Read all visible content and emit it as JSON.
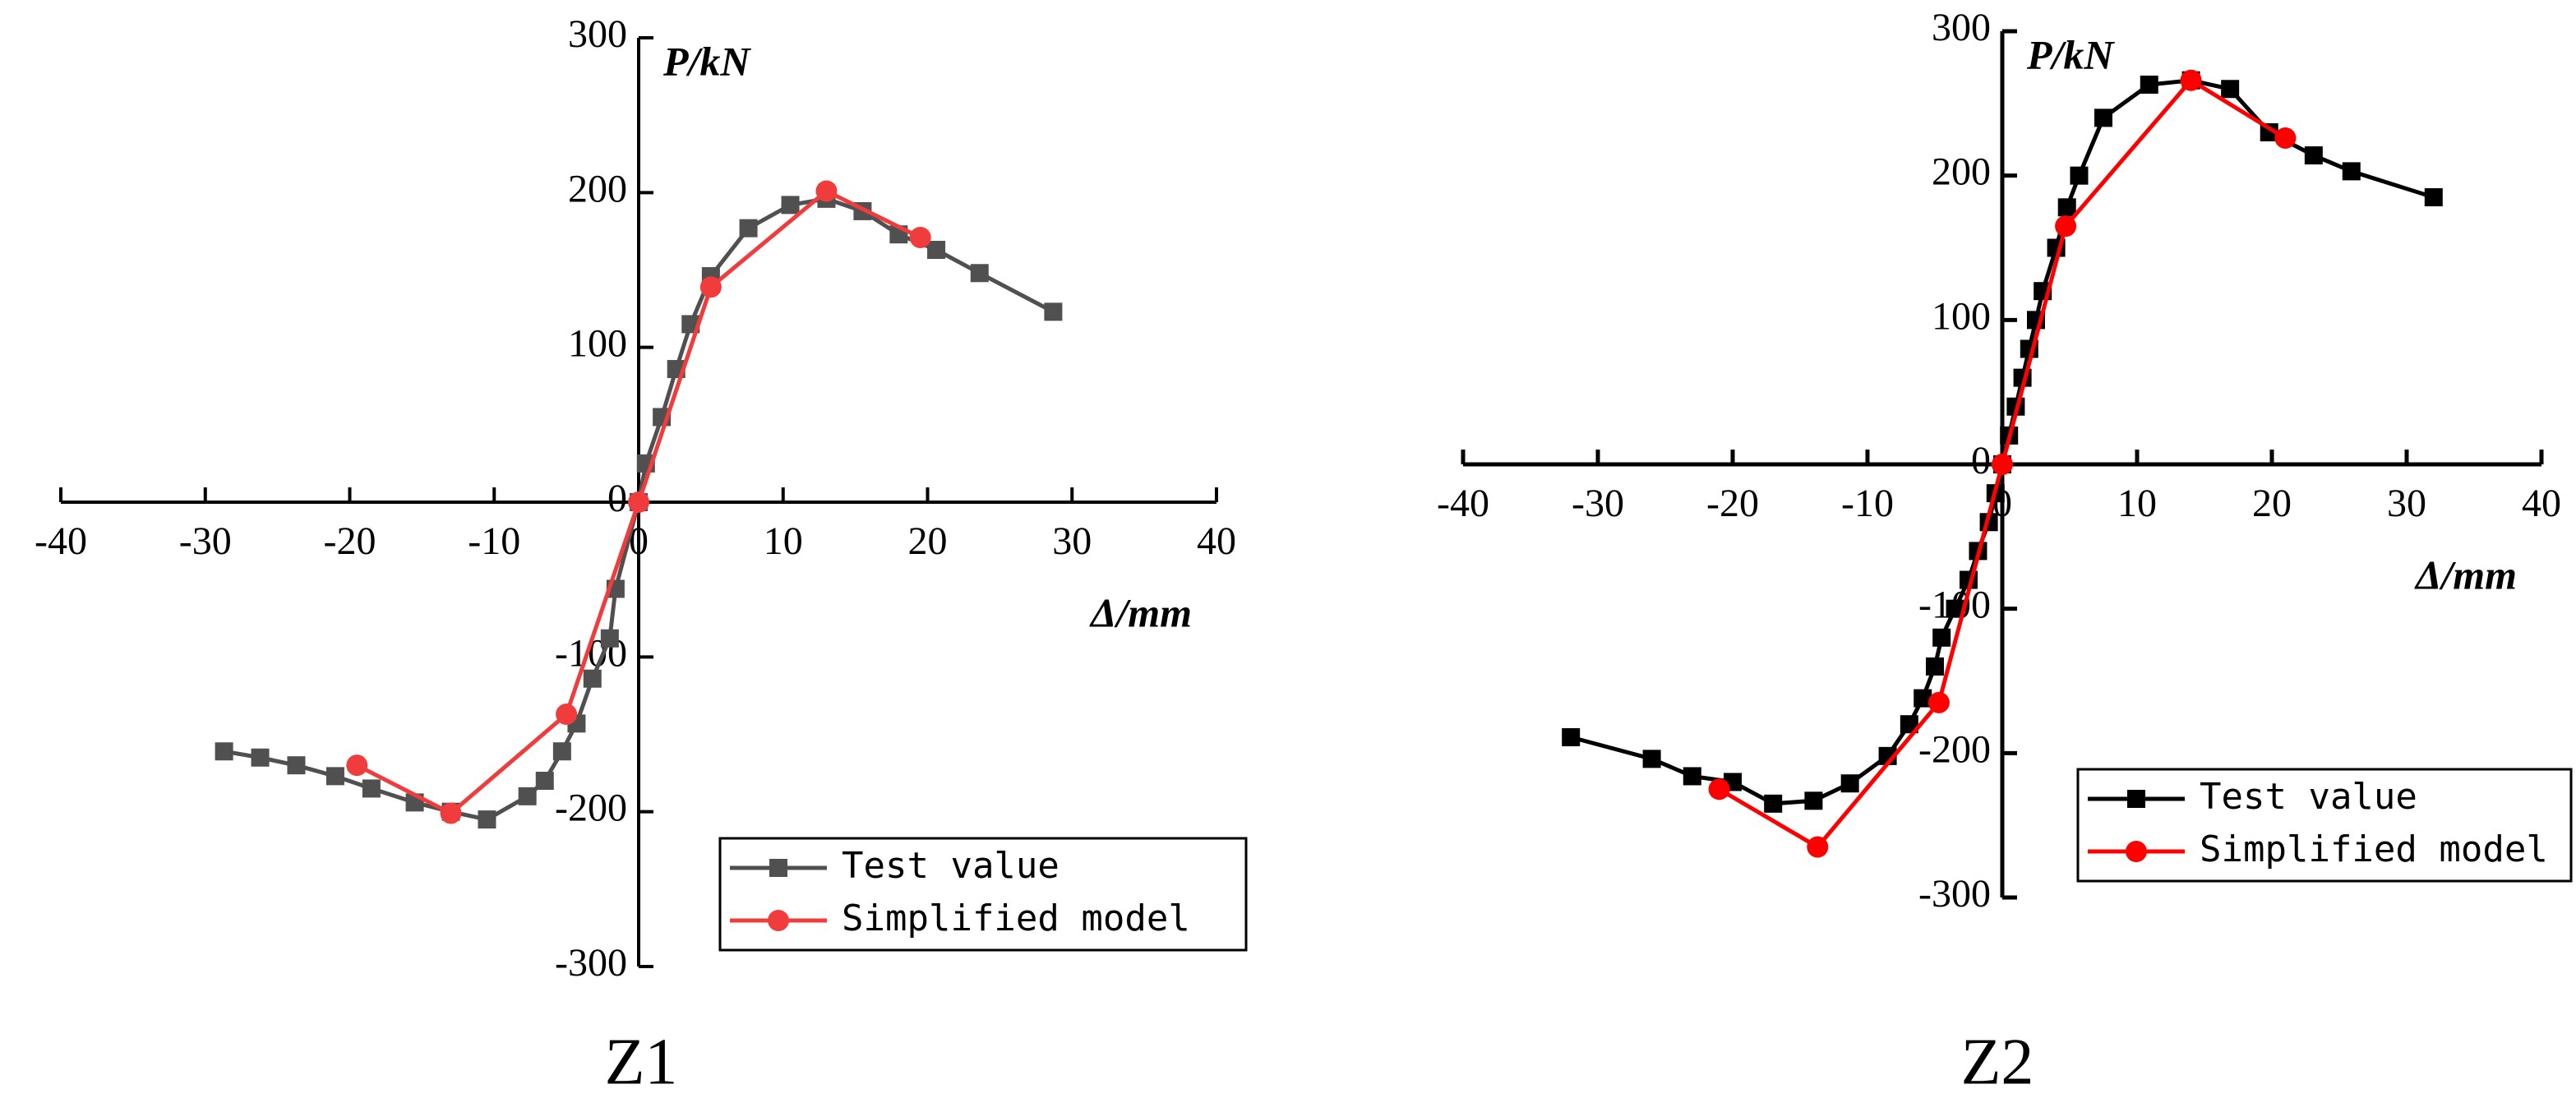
{
  "chart_data": [
    {
      "type": "line",
      "title": "Z1",
      "xlabel": "Δ/mm",
      "ylabel": "P/kN",
      "xlim": [
        -40,
        40
      ],
      "ylim": [
        -300,
        300
      ],
      "xticks": [
        -40,
        -30,
        -20,
        -10,
        0,
        10,
        20,
        30,
        40
      ],
      "yticks": [
        -300,
        -200,
        -100,
        0,
        100,
        200,
        300
      ],
      "legend": "lower right",
      "series": [
        {
          "name": "Test value",
          "color": "#505050",
          "marker": "square",
          "x": [
            -28.7,
            -26.2,
            -23.7,
            -21,
            -18.5,
            -15.5,
            -13,
            -10.5,
            -7.7,
            -6.5,
            -5.3,
            -4.3,
            -3.2,
            -2,
            -1.6,
            0,
            0.5,
            1.6,
            2.6,
            3.6,
            5,
            7.6,
            10.5,
            13,
            15.5,
            18,
            20.6,
            23.6,
            28.7
          ],
          "values": [
            -161,
            -165,
            -170,
            -177,
            -185,
            -194,
            -200,
            -205,
            -190,
            -180,
            -161,
            -143,
            -114,
            -88,
            -56,
            0,
            25,
            55,
            86,
            115,
            146,
            177,
            192,
            196,
            188,
            173,
            163,
            148,
            123
          ]
        },
        {
          "name": "Simplified model",
          "color": "#f03c3c",
          "marker": "circle",
          "x": [
            -19.5,
            -13,
            -5,
            0,
            5,
            13,
            19.5
          ],
          "values": [
            -170,
            -201,
            -137,
            0,
            139,
            201,
            171
          ]
        }
      ]
    },
    {
      "type": "line",
      "title": "Z2",
      "xlabel": "Δ/mm",
      "ylabel": "P/kN",
      "xlim": [
        -40,
        40
      ],
      "ylim": [
        -300,
        300
      ],
      "xticks": [
        -40,
        -30,
        -20,
        -10,
        0,
        10,
        20,
        30,
        40
      ],
      "yticks": [
        -300,
        -200,
        -100,
        0,
        100,
        200,
        300
      ],
      "legend": "lower right",
      "series": [
        {
          "name": "Test value",
          "color": "#000000",
          "marker": "square",
          "x": [
            -32,
            -26,
            -23,
            -20,
            -17,
            -14,
            -11.3,
            -8.5,
            -6.9,
            -5.9,
            -5,
            -4.5,
            -3.5,
            -2.5,
            -1.8,
            -1,
            -0.5,
            0,
            0.5,
            1,
            1.5,
            2,
            2.5,
            3,
            4,
            4.8,
            5.7,
            7.5,
            10.9,
            14,
            16.9,
            19.8,
            23.1,
            25.9,
            32
          ],
          "values": [
            -189,
            -204,
            -216,
            -220,
            -235,
            -233,
            -221,
            -202,
            -180,
            -162,
            -140,
            -120,
            -100,
            -80,
            -60,
            -40,
            -20,
            0,
            20,
            40,
            60,
            80,
            100,
            120,
            150,
            178,
            200,
            240,
            263,
            266,
            260,
            230,
            214,
            203,
            185
          ]
        },
        {
          "name": "Simplified model",
          "color": "#ff0000",
          "marker": "circle",
          "x": [
            -21,
            -13.7,
            -4.7,
            0,
            4.7,
            14,
            21
          ],
          "values": [
            -225,
            -265,
            -165,
            0,
            165,
            266,
            226
          ]
        }
      ]
    }
  ]
}
